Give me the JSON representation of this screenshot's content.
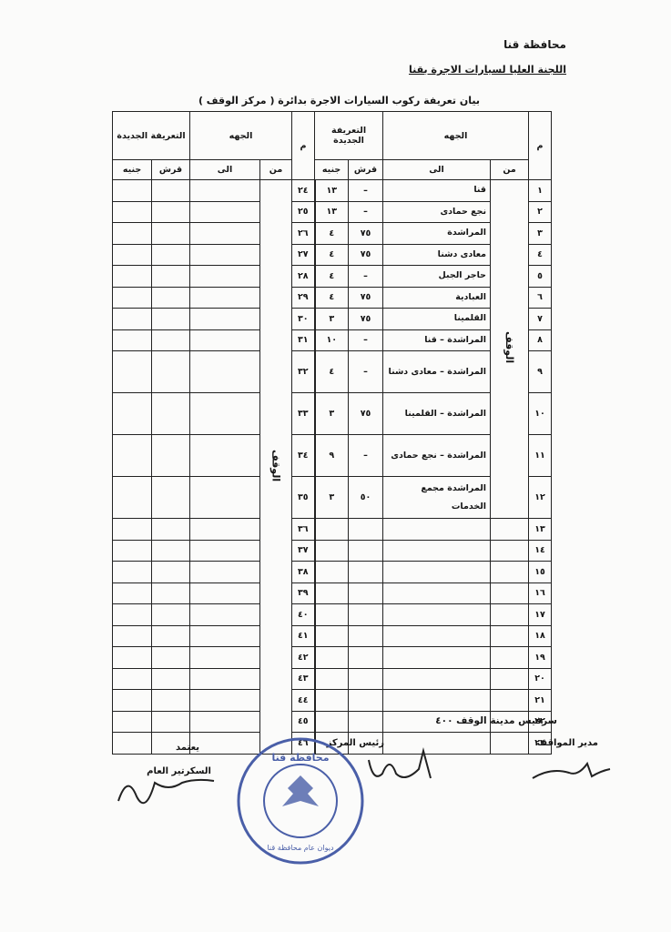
{
  "header": {
    "governorate": "محافظة قنا",
    "committee": "اللجنة العليا لسيارات الاجرة بقنا",
    "statement": "بيان تعريفة ركوب السيارات الاجرة بدائرة ( مركز الوقف )"
  },
  "table": {
    "columns": {
      "number": "م",
      "direction": "الجهه",
      "fare": "التعريفة الجديدة",
      "from": "من",
      "to": "الى",
      "piasters": "قرش",
      "pounds": "جنيه"
    },
    "from_value": "الوقف",
    "right_rows": [
      {
        "number": "١",
        "to": "قنا",
        "piasters": "–",
        "pounds": "١٣"
      },
      {
        "number": "٢",
        "to": "نجع حمادى",
        "piasters": "–",
        "pounds": "١٣"
      },
      {
        "number": "٣",
        "to": "المراشدة",
        "piasters": "٧٥",
        "pounds": "٤"
      },
      {
        "number": "٤",
        "to": "معادى دشنا",
        "piasters": "٧٥",
        "pounds": "٤"
      },
      {
        "number": "٥",
        "to": "حاجر الجبل",
        "piasters": "–",
        "pounds": "٤"
      },
      {
        "number": "٦",
        "to": "العبادية",
        "piasters": "٧٥",
        "pounds": "٤"
      },
      {
        "number": "٧",
        "to": "القلمينا",
        "piasters": "٧٥",
        "pounds": "٣"
      },
      {
        "number": "٨",
        "to": "المراشدة – قنا",
        "piasters": "–",
        "pounds": "١٠"
      },
      {
        "number": "٩",
        "to": "المراشدة – معادى دشنا",
        "piasters": "–",
        "pounds": "٤"
      },
      {
        "number": "١٠",
        "to": "المراشدة – القلمينا",
        "piasters": "٧٥",
        "pounds": "٣"
      },
      {
        "number": "١١",
        "to": "المراشدة – نجع حمادى",
        "piasters": "–",
        "pounds": "٩"
      },
      {
        "number": "١٢",
        "to": "المراشدة مجمع الخدمات",
        "piasters": "٥٠",
        "pounds": "٣"
      },
      {
        "number": "١٣"
      },
      {
        "number": "١٤"
      },
      {
        "number": "١٥"
      },
      {
        "number": "١٦"
      },
      {
        "number": "١٧"
      },
      {
        "number": "١٨"
      },
      {
        "number": "١٩"
      },
      {
        "number": "٢٠"
      },
      {
        "number": "٢١"
      },
      {
        "number": "٢٢"
      },
      {
        "number": "٢٣"
      }
    ],
    "left_numbers": [
      "٢٤",
      "٢٥",
      "٢٦",
      "٢٧",
      "٢٨",
      "٢٩",
      "٣٠",
      "٣١",
      "٣٢",
      "٣٣",
      "٣٤",
      "٣٥",
      "٣٦",
      "٣٧",
      "٣٨",
      "٣٩",
      "٤٠",
      "٤١",
      "٤٢",
      "٤٣",
      "٤٤",
      "٤٥",
      "٤٦"
    ]
  },
  "footer": {
    "service": "سرفيس مدينة الوقف ٤٠٠",
    "approved": "يعتمد",
    "secretary": "السكرتير العام",
    "center_head": "رئيس المركز",
    "stations_manager": "مدير المواقف"
  },
  "stamp": {
    "top": "محافظة قنا",
    "bottom": "ديوان عام محافظة قنا"
  }
}
